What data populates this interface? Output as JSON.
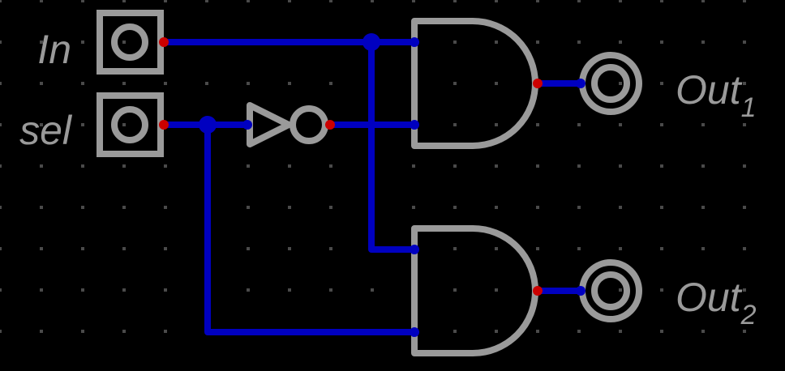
{
  "inputs": [
    {
      "id": "in",
      "label": "In"
    },
    {
      "id": "sel",
      "label": "sel"
    }
  ],
  "outputs": [
    {
      "id": "out1",
      "label": "Out",
      "subscript": "1"
    },
    {
      "id": "out2",
      "label": "Out",
      "subscript": "2"
    }
  ],
  "gates": [
    {
      "id": "not-sel",
      "type": "NOT"
    },
    {
      "id": "and-top",
      "type": "AND"
    },
    {
      "id": "and-bottom",
      "type": "AND"
    }
  ],
  "colors": {
    "background": "#000000",
    "grid_dot": "#4a4a4a",
    "component": "#9a9a9a",
    "wire": "#0000c0",
    "pin": "#cc0000"
  }
}
